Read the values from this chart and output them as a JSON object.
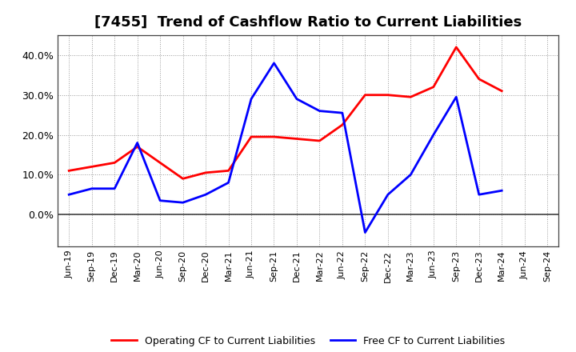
{
  "title": "[7455]  Trend of Cashflow Ratio to Current Liabilities",
  "x_labels": [
    "Jun-19",
    "Sep-19",
    "Dec-19",
    "Mar-20",
    "Jun-20",
    "Sep-20",
    "Dec-20",
    "Mar-21",
    "Jun-21",
    "Sep-21",
    "Dec-21",
    "Mar-22",
    "Jun-22",
    "Sep-22",
    "Dec-22",
    "Mar-23",
    "Jun-23",
    "Sep-23",
    "Dec-23",
    "Mar-24",
    "Jun-24",
    "Sep-24"
  ],
  "operating_cf": [
    11.0,
    12.0,
    13.0,
    17.0,
    13.0,
    9.0,
    10.5,
    11.0,
    19.5,
    19.5,
    19.0,
    18.5,
    22.5,
    30.0,
    30.0,
    29.5,
    32.0,
    42.0,
    34.0,
    31.0,
    null,
    null
  ],
  "free_cf": [
    5.0,
    6.5,
    6.5,
    18.0,
    3.5,
    3.0,
    5.0,
    8.0,
    29.0,
    38.0,
    29.0,
    26.0,
    25.5,
    -4.5,
    5.0,
    10.0,
    20.0,
    29.5,
    5.0,
    6.0,
    null,
    null
  ],
  "operating_color": "#ff0000",
  "free_color": "#0000ff",
  "ylim": [
    -8,
    45
  ],
  "yticks": [
    0.0,
    10.0,
    20.0,
    30.0,
    40.0
  ],
  "background_color": "#ffffff",
  "plot_bg_color": "#ffffff",
  "grid_color": "#999999",
  "legend_labels": [
    "Operating CF to Current Liabilities",
    "Free CF to Current Liabilities"
  ],
  "title_fontsize": 13,
  "tick_fontsize": 8,
  "legend_fontsize": 9,
  "linewidth": 2.0
}
